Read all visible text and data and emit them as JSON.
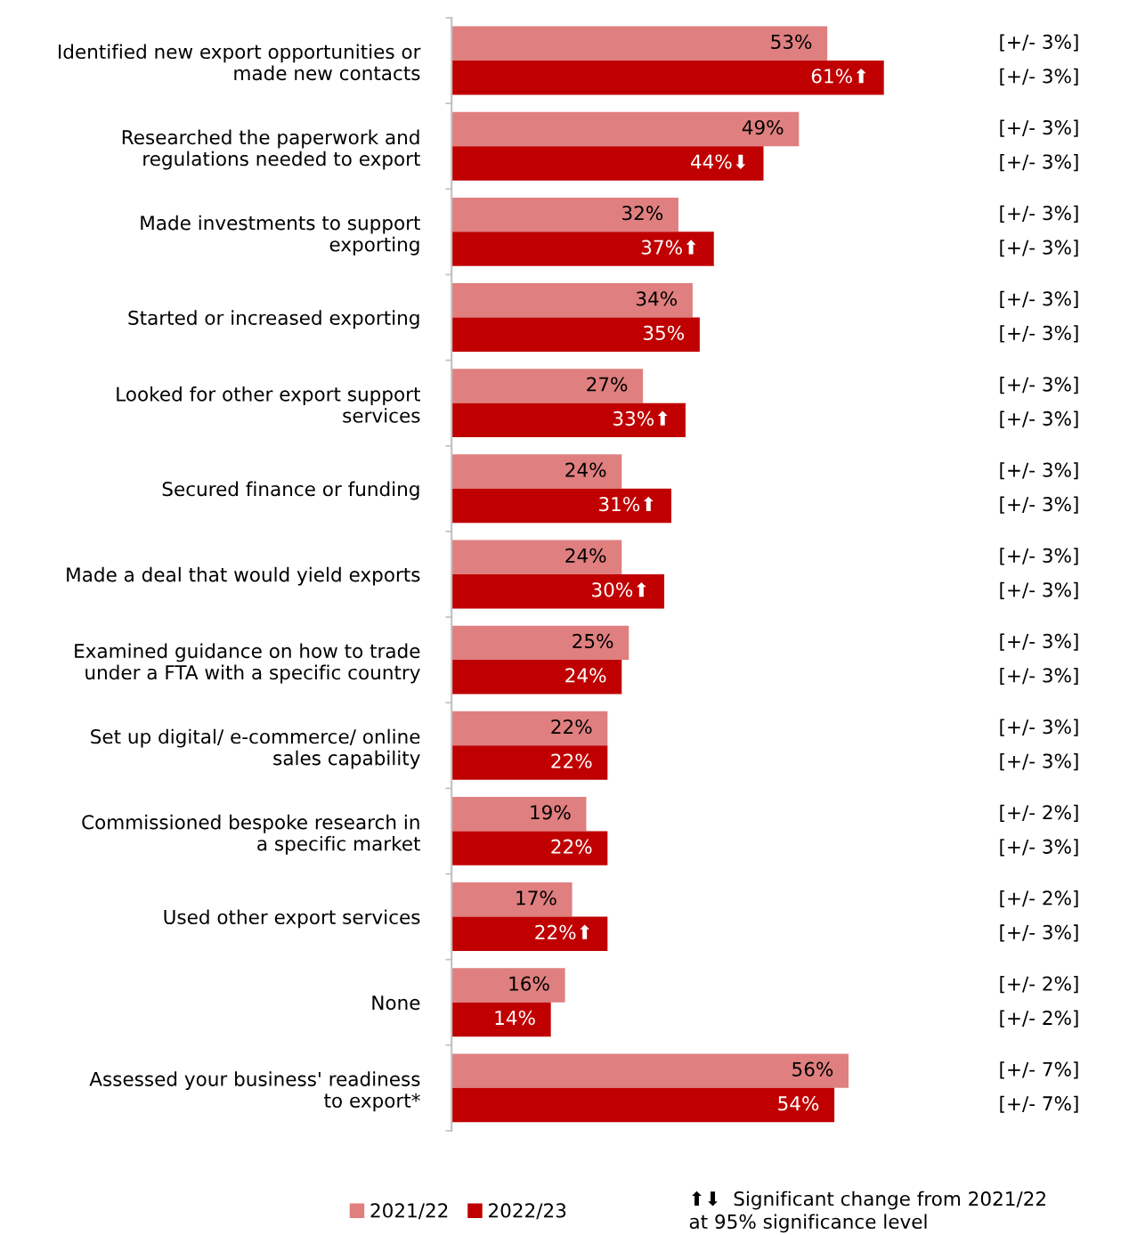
{
  "chart_data": {
    "type": "bar",
    "orientation": "horizontal",
    "categories": [
      "Identified new export opportunities or\nmade new contacts",
      "Researched the paperwork and\nregulations needed to export",
      "Made investments to support\nexporting",
      "Started or increased exporting",
      "Looked for other export support\nservices",
      "Secured finance or funding",
      "Made a deal that would yield exports",
      "Examined guidance on how to trade\nunder a FTA with a specific country",
      "Set up digital/ e-commerce/ online\nsales capability",
      "Commissioned bespoke research in\na specific market",
      "Used other export services",
      "None",
      "Assessed your business' readiness\nto export*"
    ],
    "series": [
      {
        "name": "2021/22",
        "color": "#e07f7f",
        "values": [
          53,
          49,
          32,
          34,
          27,
          24,
          24,
          25,
          22,
          19,
          17,
          16,
          56
        ],
        "value_labels": [
          "53%",
          "49%",
          "32%",
          "34%",
          "27%",
          "24%",
          "24%",
          "25%",
          "22%",
          "19%",
          "17%",
          "16%",
          "56%"
        ]
      },
      {
        "name": "2022/23",
        "color": "#c00000",
        "values": [
          61,
          44,
          37,
          35,
          33,
          31,
          30,
          24,
          22,
          22,
          22,
          14,
          54
        ],
        "value_labels": [
          "61%⬆",
          "44%⬇",
          "37%⬆",
          "35%",
          "33%⬆",
          "31%⬆",
          "30%⬆",
          "24%",
          "22%",
          "22%",
          "22%⬆",
          "14%",
          "54%"
        ]
      }
    ],
    "annotations": [
      "[+/- 3%]",
      "[+/- 3%]",
      "[+/- 3%]",
      "[+/- 3%]",
      "[+/- 3%]",
      "[+/- 3%]",
      "[+/- 3%]",
      "[+/- 3%]",
      "[+/- 3%]",
      "[+/- 3%]",
      "[+/- 3%]",
      "[+/- 3%]",
      "[+/- 3%]",
      "[+/- 3%]",
      "[+/- 3%]",
      "[+/- 3%]",
      "[+/- 3%]",
      "[+/- 3%]",
      "[+/- 2%]",
      "[+/- 3%]",
      "[+/- 2%]",
      "[+/- 3%]",
      "[+/- 2%]",
      "[+/- 2%]",
      "[+/- 7%]",
      "[+/- 7%]",
      "⬆⬇  Significant change from 2021/22\nat 95% significance level"
    ],
    "legend": "bottom",
    "grid": false
  }
}
